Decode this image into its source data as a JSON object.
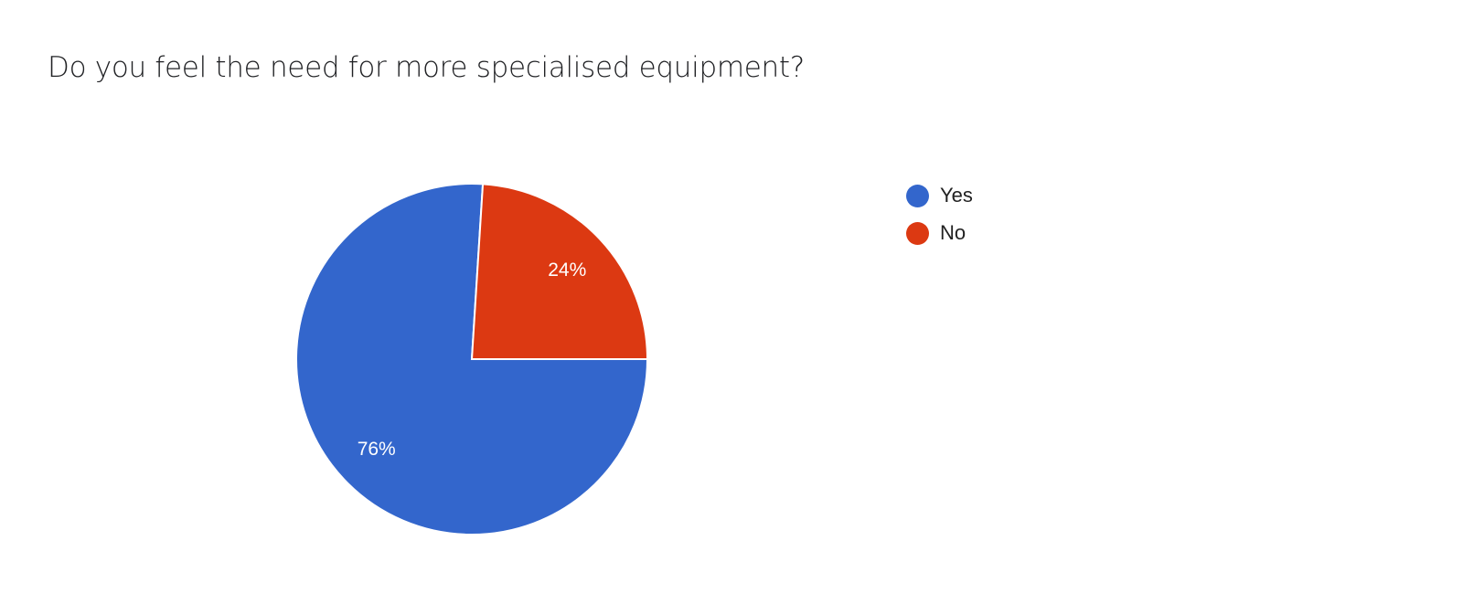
{
  "chart_data": {
    "type": "pie",
    "title": "Do you feel the need for more specialised equipment?",
    "categories": [
      "Yes",
      "No"
    ],
    "values": [
      76,
      24
    ],
    "data_labels": [
      "76%",
      "24%"
    ],
    "colors": [
      "#3366cc",
      "#dc3912"
    ],
    "legend_position": "right"
  }
}
